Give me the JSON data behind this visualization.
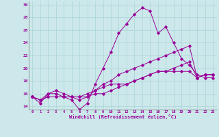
{
  "xlabel": "Windchill (Refroidissement éolien,°C)",
  "ylabel": "",
  "xlim": [
    -0.5,
    23.5
  ],
  "ylim": [
    13.5,
    30.5
  ],
  "yticks": [
    14,
    16,
    18,
    20,
    22,
    24,
    26,
    28,
    30
  ],
  "xticks": [
    0,
    1,
    2,
    3,
    4,
    5,
    6,
    7,
    8,
    9,
    10,
    11,
    12,
    13,
    14,
    15,
    16,
    17,
    18,
    19,
    20,
    21,
    22,
    23
  ],
  "bg_color": "#cce8ea",
  "line_color": "#990099",
  "grid_color": "#aad4d8",
  "series": [
    [
      15.5,
      14.5,
      16.0,
      16.0,
      15.5,
      15.0,
      13.5,
      14.5,
      17.5,
      20.0,
      22.5,
      25.5,
      27.0,
      28.5,
      29.5,
      29.0,
      25.5,
      26.5,
      24.0,
      21.5,
      20.5,
      19.0,
      18.5,
      18.5
    ],
    [
      15.5,
      15.0,
      16.0,
      16.5,
      16.0,
      15.5,
      15.0,
      15.5,
      16.5,
      17.5,
      18.0,
      19.0,
      19.5,
      20.0,
      20.5,
      21.0,
      21.5,
      22.0,
      22.5,
      23.0,
      23.5,
      18.5,
      19.0,
      19.0
    ],
    [
      15.5,
      15.0,
      15.5,
      15.5,
      15.5,
      15.5,
      15.5,
      16.0,
      16.5,
      17.0,
      17.5,
      17.5,
      17.5,
      18.0,
      18.5,
      19.0,
      19.5,
      19.5,
      19.5,
      19.5,
      19.5,
      18.5,
      19.0,
      19.0
    ],
    [
      15.5,
      15.0,
      15.5,
      15.5,
      15.5,
      15.5,
      15.5,
      15.5,
      16.0,
      16.0,
      16.5,
      17.0,
      17.5,
      18.0,
      18.5,
      19.0,
      19.5,
      19.5,
      20.0,
      20.5,
      21.0,
      18.5,
      19.0,
      19.0
    ]
  ]
}
